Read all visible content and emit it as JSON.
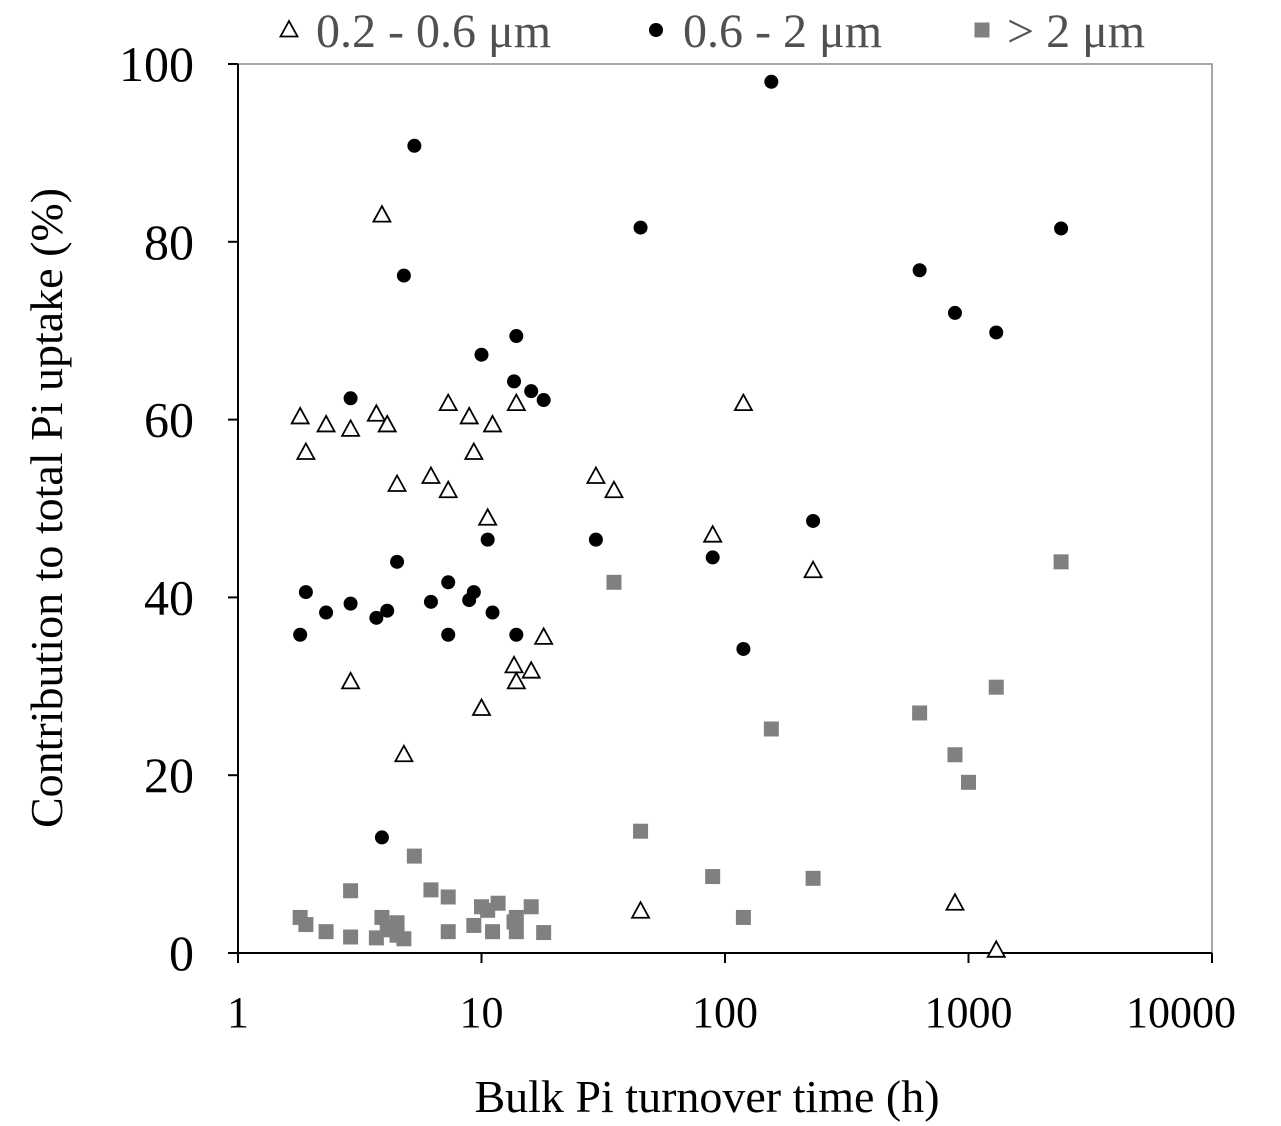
{
  "chart_data": {
    "type": "scatter",
    "xlabel": "Bulk Pi turnover time (h)",
    "ylabel": "Contribution to total Pi uptake (%)",
    "x_scale": "log",
    "xlim": [
      1,
      10000
    ],
    "ylim": [
      0,
      100
    ],
    "x_ticks": [
      "1",
      "10",
      "100",
      "1000",
      "10000"
    ],
    "y_ticks": [
      "0",
      "20",
      "40",
      "60",
      "80",
      "100"
    ],
    "grid": false,
    "legend_position": "top",
    "series": [
      {
        "name": "0.2 - 0.6 μm",
        "marker": "triangle-open",
        "color": "#000000",
        "points": [
          [
            1.8,
            60.3
          ],
          [
            1.9,
            56.3
          ],
          [
            2.3,
            59.4
          ],
          [
            2.9,
            58.9
          ],
          [
            3.7,
            60.6
          ],
          [
            4.1,
            59.4
          ],
          [
            4.5,
            52.7
          ],
          [
            6.2,
            53.6
          ],
          [
            7.3,
            52.0
          ],
          [
            7.3,
            61.8
          ],
          [
            8.9,
            60.3
          ],
          [
            9.3,
            56.3
          ],
          [
            10.6,
            48.9
          ],
          [
            11.1,
            59.4
          ],
          [
            13.9,
            61.8
          ],
          [
            29.5,
            53.6
          ],
          [
            35.0,
            52.0
          ],
          [
            89.0,
            47.0
          ],
          [
            119.0,
            61.8
          ],
          [
            230.0,
            43.0
          ],
          [
            2.9,
            30.5
          ],
          [
            10.0,
            27.5
          ],
          [
            13.6,
            32.3
          ],
          [
            13.9,
            30.5
          ],
          [
            16.0,
            31.7
          ],
          [
            18.0,
            35.5
          ],
          [
            4.8,
            22.3
          ],
          [
            3.9,
            83.0
          ],
          [
            45.0,
            4.7
          ],
          [
            880.0,
            5.6
          ],
          [
            1300.0,
            0.3
          ]
        ]
      },
      {
        "name": "0.6 - 2 μm",
        "marker": "circle-filled",
        "color": "#000000",
        "points": [
          [
            1.8,
            35.8
          ],
          [
            1.9,
            40.6
          ],
          [
            2.3,
            38.3
          ],
          [
            2.9,
            39.3
          ],
          [
            3.7,
            37.7
          ],
          [
            4.1,
            38.5
          ],
          [
            4.5,
            44.0
          ],
          [
            6.2,
            39.5
          ],
          [
            7.3,
            35.8
          ],
          [
            7.3,
            41.7
          ],
          [
            8.9,
            39.7
          ],
          [
            9.3,
            40.6
          ],
          [
            10.6,
            46.5
          ],
          [
            11.1,
            38.3
          ],
          [
            13.9,
            35.8
          ],
          [
            29.5,
            46.5
          ],
          [
            89.0,
            44.5
          ],
          [
            119.0,
            34.2
          ],
          [
            230.0,
            48.6
          ],
          [
            2.9,
            62.4
          ],
          [
            10.0,
            67.3
          ],
          [
            13.6,
            64.3
          ],
          [
            13.9,
            69.4
          ],
          [
            16.0,
            63.2
          ],
          [
            18.0,
            62.2
          ],
          [
            4.8,
            76.2
          ],
          [
            5.3,
            90.8
          ],
          [
            45.0,
            81.6
          ],
          [
            155.0,
            98.0
          ],
          [
            630.0,
            76.8
          ],
          [
            880.0,
            72.0
          ],
          [
            1300.0,
            69.8
          ],
          [
            2400.0,
            81.5
          ],
          [
            3.9,
            13.0
          ]
        ]
      },
      {
        "name": "> 2 μm",
        "marker": "square-filled",
        "color": "#808080",
        "points": [
          [
            1.8,
            4.0
          ],
          [
            1.9,
            3.2
          ],
          [
            2.3,
            2.4
          ],
          [
            2.9,
            7.0
          ],
          [
            2.9,
            1.8
          ],
          [
            3.7,
            1.7
          ],
          [
            3.9,
            4.0
          ],
          [
            4.1,
            2.6
          ],
          [
            4.5,
            3.4
          ],
          [
            4.5,
            2.0
          ],
          [
            4.8,
            1.6
          ],
          [
            5.3,
            10.9
          ],
          [
            6.2,
            7.1
          ],
          [
            7.3,
            6.3
          ],
          [
            7.3,
            2.4
          ],
          [
            9.3,
            3.1
          ],
          [
            10.0,
            5.2
          ],
          [
            10.6,
            4.8
          ],
          [
            11.1,
            2.4
          ],
          [
            11.7,
            5.6
          ],
          [
            13.6,
            3.5
          ],
          [
            13.9,
            4.0
          ],
          [
            13.9,
            2.4
          ],
          [
            16.0,
            5.2
          ],
          [
            18.0,
            2.3
          ],
          [
            35.0,
            41.7
          ],
          [
            45.0,
            13.7
          ],
          [
            89.0,
            8.6
          ],
          [
            119.0,
            4.0
          ],
          [
            155.0,
            25.2
          ],
          [
            230.0,
            8.4
          ],
          [
            630.0,
            27.0
          ],
          [
            880.0,
            22.3
          ],
          [
            1000.0,
            19.2
          ],
          [
            1300.0,
            29.9
          ],
          [
            2400.0,
            44.0
          ]
        ]
      }
    ]
  }
}
